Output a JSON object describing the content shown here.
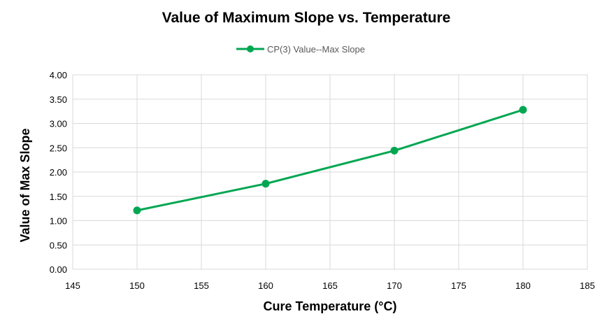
{
  "chart_data": {
    "type": "line",
    "title": "Value of Maximum Slope vs. Temperature",
    "xlabel": "Cure Temperature (°C)",
    "ylabel": "Value of Max Slope",
    "xlim": [
      145,
      185
    ],
    "ylim": [
      0,
      4
    ],
    "x_ticks": [
      "145",
      "150",
      "155",
      "160",
      "165",
      "170",
      "175",
      "180",
      "185"
    ],
    "y_ticks": [
      "0.00",
      "0.50",
      "1.00",
      "1.50",
      "2.00",
      "2.50",
      "3.00",
      "3.50",
      "4.00"
    ],
    "grid": true,
    "legend_position": "top",
    "series": [
      {
        "name": "CP(3) Value--Max Slope",
        "color": "#00A651",
        "marker": "circle",
        "x": [
          150,
          160,
          170,
          180
        ],
        "y": [
          1.21,
          1.76,
          2.44,
          3.28
        ]
      }
    ]
  }
}
